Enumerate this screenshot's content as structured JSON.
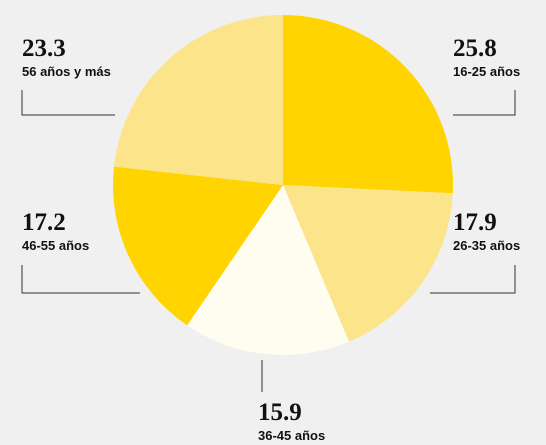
{
  "chart_data": {
    "type": "pie",
    "categories": [
      "16-25 años",
      "26-35 años",
      "36-45 años",
      "46-55 años",
      "56 años y más"
    ],
    "values": [
      25.8,
      17.9,
      15.9,
      17.2,
      23.3
    ],
    "colors": [
      "#ffd400",
      "#fce48a",
      "#fffdf0",
      "#ffd400",
      "#fce48a"
    ]
  }
}
